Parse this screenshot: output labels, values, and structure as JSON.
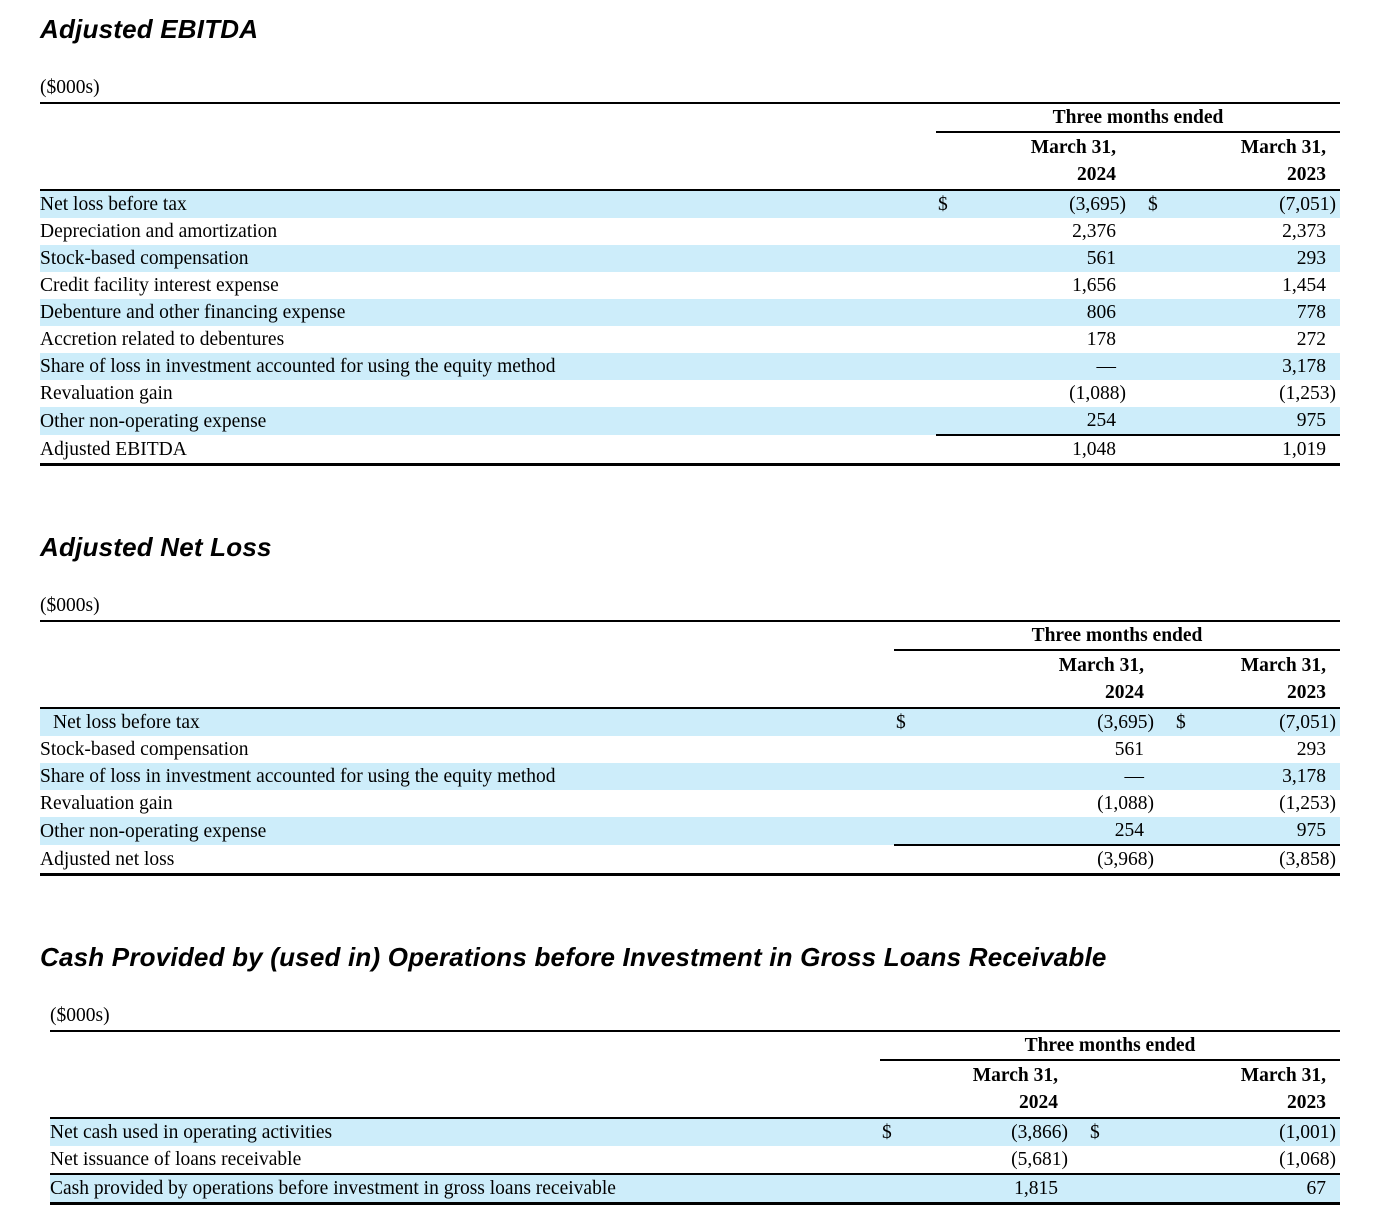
{
  "page": {
    "row_highlight_color": "#cdedfa",
    "rule_color": "#000000",
    "text_color": "#000000"
  },
  "sections": [
    {
      "title": "Adjusted EBITDA",
      "units": "($000s)",
      "period_header": "Three months ended",
      "columns": [
        {
          "line1": "March 31,",
          "line2": "2024"
        },
        {
          "line1": "March 31,",
          "line2": "2023"
        }
      ],
      "rows": [
        {
          "label": "Net loss before tax",
          "cur1": "$",
          "v2024": "(3,695)",
          "cur2": "$",
          "v2023": "(7,051)"
        },
        {
          "label": "Depreciation and amortization",
          "cur1": "",
          "v2024": "2,376",
          "cur2": "",
          "v2023": "2,373"
        },
        {
          "label": "Stock-based compensation",
          "cur1": "",
          "v2024": "561",
          "cur2": "",
          "v2023": "293"
        },
        {
          "label": "Credit facility interest expense",
          "cur1": "",
          "v2024": "1,656",
          "cur2": "",
          "v2023": "1,454"
        },
        {
          "label": "Debenture and other financing expense",
          "cur1": "",
          "v2024": "806",
          "cur2": "",
          "v2023": "778"
        },
        {
          "label": "Accretion related to debentures",
          "cur1": "",
          "v2024": "178",
          "cur2": "",
          "v2023": "272"
        },
        {
          "label": "Share of loss in investment accounted for using the equity method",
          "cur1": "",
          "v2024": "—",
          "cur2": "",
          "v2023": "3,178"
        },
        {
          "label": "Revaluation gain",
          "cur1": "",
          "v2024": "(1,088)",
          "cur2": "",
          "v2023": "(1,253)"
        },
        {
          "label": "Other non-operating expense",
          "cur1": "",
          "v2024": "254",
          "cur2": "",
          "v2023": "975"
        },
        {
          "label": "Adjusted EBITDA",
          "cur1": "",
          "v2024": "1,048",
          "cur2": "",
          "v2023": "1,019"
        }
      ]
    },
    {
      "title": "Adjusted Net Loss",
      "units": "($000s)",
      "period_header": "Three months ended",
      "columns": [
        {
          "line1": "March 31,",
          "line2": "2024"
        },
        {
          "line1": "March 31,",
          "line2": "2023"
        }
      ],
      "rows": [
        {
          "label": "Net loss before tax",
          "cur1": "$",
          "v2024": "(3,695)",
          "cur2": "$",
          "v2023": "(7,051)"
        },
        {
          "label": "Stock-based compensation",
          "cur1": "",
          "v2024": "561",
          "cur2": "",
          "v2023": "293"
        },
        {
          "label": "Share of loss in investment accounted for using the equity method",
          "cur1": "",
          "v2024": "—",
          "cur2": "",
          "v2023": "3,178"
        },
        {
          "label": "Revaluation gain",
          "cur1": "",
          "v2024": "(1,088)",
          "cur2": "",
          "v2023": "(1,253)"
        },
        {
          "label": "Other non-operating expense",
          "cur1": "",
          "v2024": "254",
          "cur2": "",
          "v2023": "975"
        },
        {
          "label": "Adjusted net loss",
          "cur1": "",
          "v2024": "(3,968)",
          "cur2": "",
          "v2023": "(3,858)"
        }
      ]
    },
    {
      "title": "Cash Provided by (used in) Operations before Investment in Gross Loans Receivable",
      "units": "($000s)",
      "period_header": "Three months ended",
      "columns": [
        {
          "line1": "March 31,",
          "line2": "2024"
        },
        {
          "line1": "March 31,",
          "line2": "2023"
        }
      ],
      "rows": [
        {
          "label": "Net cash used in operating activities",
          "cur1": "$",
          "v2024": "(3,866)",
          "cur2": "$",
          "v2023": "(1,001)"
        },
        {
          "label": "Net issuance of loans receivable",
          "cur1": "",
          "v2024": "(5,681)",
          "cur2": "",
          "v2023": "(1,068)"
        },
        {
          "label": "Cash provided by operations before investment in gross loans receivable",
          "cur1": "",
          "v2024": "1,815",
          "cur2": "",
          "v2023": "67"
        }
      ]
    }
  ]
}
